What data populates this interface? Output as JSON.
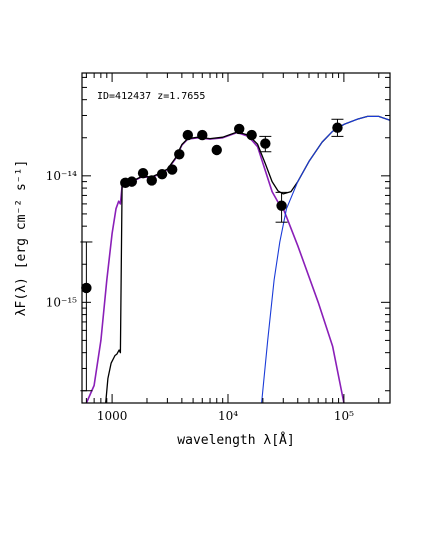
{
  "chart_data": {
    "type": "scatter",
    "annotation": "ID=412437 z=1.7655",
    "xlabel": "wavelength λ[Å]",
    "ylabel": "λF(λ) [erg cm⁻² s⁻¹]",
    "x_scale": "log",
    "y_scale": "log",
    "xlim": [
      550,
      250000
    ],
    "ylim": [
      1.6e-16,
      6.5e-14
    ],
    "x_ticks": [
      {
        "value": 1000,
        "label": "1000"
      },
      {
        "value": 10000,
        "label": "10⁴"
      },
      {
        "value": 100000,
        "label": "10⁵"
      }
    ],
    "y_ticks": [
      {
        "value": 1e-15,
        "label": "10⁻¹⁵"
      },
      {
        "value": 1e-14,
        "label": "10⁻¹⁴"
      }
    ],
    "grid": false,
    "observations": [
      {
        "x": 600,
        "y": 1.3e-15,
        "err": [
          2e-16,
          3e-15
        ]
      },
      {
        "x": 1300,
        "y": 8.8e-15
      },
      {
        "x": 1480,
        "y": 9e-15
      },
      {
        "x": 1850,
        "y": 1.05e-14
      },
      {
        "x": 2200,
        "y": 9.2e-15
      },
      {
        "x": 2700,
        "y": 1.03e-14
      },
      {
        "x": 3300,
        "y": 1.12e-14
      },
      {
        "x": 3800,
        "y": 1.48e-14
      },
      {
        "x": 4500,
        "y": 2.1e-14
      },
      {
        "x": 6000,
        "y": 2.1e-14
      },
      {
        "x": 8000,
        "y": 1.6e-14
      },
      {
        "x": 12500,
        "y": 2.35e-14
      },
      {
        "x": 16000,
        "y": 2.1e-14
      },
      {
        "x": 21000,
        "y": 1.8e-14,
        "err": [
          1.55e-14,
          2.05e-14
        ]
      },
      {
        "x": 29000,
        "y": 5.8e-15,
        "err": [
          4.3e-15,
          7.4e-15
        ]
      },
      {
        "x": 88000,
        "y": 2.4e-14,
        "err": [
          2.05e-14,
          2.8e-14
        ]
      }
    ],
    "series": [
      {
        "color": "#8a1fb8",
        "width": 1.6,
        "points": [
          [
            600,
            1.6e-16
          ],
          [
            700,
            2.2e-16
          ],
          [
            800,
            5e-16
          ],
          [
            900,
            1.5e-15
          ],
          [
            1000,
            3.5e-15
          ],
          [
            1080,
            5.5e-15
          ],
          [
            1140,
            6.3e-15
          ],
          [
            1180,
            6e-15
          ],
          [
            1220,
            8.3e-15
          ],
          [
            1300,
            8.7e-15
          ],
          [
            1500,
            9e-15
          ],
          [
            1800,
            9.8e-15
          ],
          [
            2200,
            9.7e-15
          ],
          [
            2600,
            1.04e-14
          ],
          [
            3000,
            1.12e-14
          ],
          [
            3500,
            1.35e-14
          ],
          [
            4000,
            1.75e-14
          ],
          [
            4500,
            1.95e-14
          ],
          [
            5500,
            2e-14
          ],
          [
            7000,
            1.95e-14
          ],
          [
            9000,
            2e-14
          ],
          [
            12000,
            2.2e-14
          ],
          [
            15000,
            2.05e-14
          ],
          [
            18000,
            1.7e-14
          ],
          [
            21000,
            1.1e-14
          ],
          [
            24000,
            7.5e-15
          ],
          [
            27000,
            6.2e-15
          ],
          [
            30000,
            5.5e-15
          ],
          [
            40000,
            2.8e-15
          ],
          [
            60000,
            1e-15
          ],
          [
            80000,
            4.5e-16
          ],
          [
            100000,
            1.6e-16
          ]
        ]
      },
      {
        "color": "#000000",
        "width": 1.3,
        "points": [
          [
            880,
            1.6e-16
          ],
          [
            920,
            2.5e-16
          ],
          [
            980,
            3.3e-16
          ],
          [
            1060,
            3.8e-16
          ],
          [
            1100,
            3.9e-16
          ],
          [
            1150,
            4.2e-16
          ],
          [
            1180,
            4e-16
          ],
          [
            1220,
            8.5e-15
          ],
          [
            1300,
            8.8e-15
          ],
          [
            1500,
            9.1e-15
          ],
          [
            1800,
            9.9e-15
          ],
          [
            2200,
            9.8e-15
          ],
          [
            2600,
            1.05e-14
          ],
          [
            3000,
            1.13e-14
          ],
          [
            3500,
            1.37e-14
          ],
          [
            4000,
            1.77e-14
          ],
          [
            4500,
            1.97e-14
          ],
          [
            5500,
            2.02e-14
          ],
          [
            7000,
            1.97e-14
          ],
          [
            9000,
            2.02e-14
          ],
          [
            12000,
            2.22e-14
          ],
          [
            15000,
            2.1e-14
          ],
          [
            18000,
            1.78e-14
          ],
          [
            21000,
            1.25e-14
          ],
          [
            24000,
            9e-15
          ],
          [
            27000,
            7.6e-15
          ],
          [
            30000,
            7.2e-15
          ],
          [
            35000,
            7.5e-15
          ],
          [
            40000,
            9e-15
          ],
          [
            50000,
            1.3e-14
          ],
          [
            65000,
            1.85e-14
          ],
          [
            80000,
            2.25e-14
          ],
          [
            100000,
            2.55e-14
          ],
          [
            130000,
            2.8e-14
          ],
          [
            160000,
            2.95e-14
          ],
          [
            200000,
            2.95e-14
          ],
          [
            250000,
            2.75e-14
          ]
        ]
      },
      {
        "color": "#1a3bd8",
        "width": 1.1,
        "points": [
          [
            19500,
            1.6e-16
          ],
          [
            22000,
            5e-16
          ],
          [
            25000,
            1.5e-15
          ],
          [
            28000,
            3e-15
          ],
          [
            32000,
            5.5e-15
          ],
          [
            40000,
            9e-15
          ],
          [
            50000,
            1.3e-14
          ],
          [
            65000,
            1.85e-14
          ],
          [
            80000,
            2.25e-14
          ],
          [
            100000,
            2.55e-14
          ],
          [
            130000,
            2.8e-14
          ],
          [
            160000,
            2.95e-14
          ],
          [
            200000,
            2.95e-14
          ],
          [
            250000,
            2.75e-14
          ]
        ]
      }
    ]
  }
}
